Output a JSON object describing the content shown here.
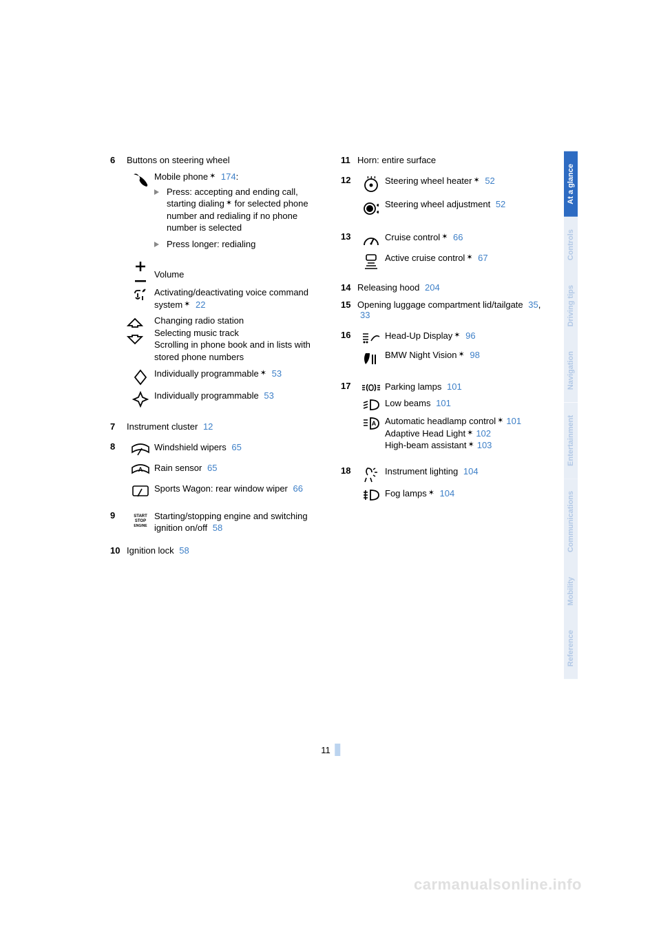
{
  "page_number": "11",
  "watermark": "carmanualsonline.info",
  "colors": {
    "page_ref": "#3d7fc7",
    "tab_active_bg": "#2d6bc2",
    "tab_active_fg": "#ffffff",
    "tab_inactive_bg": "#e8eef6",
    "tab_inactive_fg": "#b3c9e6"
  },
  "side_tabs": [
    {
      "label": "At a glance",
      "active": true
    },
    {
      "label": "Controls",
      "active": false
    },
    {
      "label": "Driving tips",
      "active": false
    },
    {
      "label": "Navigation",
      "active": false
    },
    {
      "label": "Entertainment",
      "active": false
    },
    {
      "label": "Communications",
      "active": false
    },
    {
      "label": "Mobility",
      "active": false
    },
    {
      "label": "Reference",
      "active": false
    }
  ],
  "left": {
    "i6": {
      "num": "6",
      "heading": "Buttons on steering wheel",
      "phone_label": "Mobile phone",
      "phone_ref": "174",
      "phone_colon": ":",
      "bullet1": "Press: accepting and ending call, starting dialing",
      "bullet1_after": " for selected phone number and redialing if no phone number is selected",
      "bullet2": "Press longer: redialing",
      "volume": "Volume",
      "voice_a": "Activating/deactivating voice command system",
      "voice_ref": "22",
      "radio_l1": "Changing radio station",
      "radio_l2": "Selecting music track",
      "radio_l3": "Scrolling in phone book and in lists with stored phone numbers",
      "prog1": "Individually programmable",
      "prog1_ref": "53",
      "prog2": "Individually programmable",
      "prog2_ref": "53"
    },
    "i7": {
      "num": "7",
      "text": "Instrument cluster",
      "ref": "12"
    },
    "i8": {
      "num": "8",
      "wipers": "Windshield wipers",
      "wipers_ref": "65",
      "rain": "Rain sensor",
      "rain_ref": "65",
      "rear": "Sports Wagon: rear window wiper",
      "rear_ref": "66"
    },
    "i9": {
      "num": "9",
      "text": "Starting/stopping engine and switching ignition on/off",
      "ref": "58"
    },
    "i10": {
      "num": "10",
      "text": "Ignition lock",
      "ref": "58"
    }
  },
  "right": {
    "i11": {
      "num": "11",
      "text": "Horn: entire surface"
    },
    "i12": {
      "num": "12",
      "heater": "Steering wheel heater",
      "heater_ref": "52",
      "adjust": "Steering wheel adjustment",
      "adjust_ref": "52"
    },
    "i13": {
      "num": "13",
      "cruise": "Cruise control",
      "cruise_ref": "66",
      "active": "Active cruise control",
      "active_ref": "67"
    },
    "i14": {
      "num": "14",
      "text": "Releasing hood",
      "ref": "204"
    },
    "i15": {
      "num": "15",
      "text_a": "Opening luggage compartment lid/tailgate",
      "ref_a": "35",
      "sep": ", ",
      "ref_b": "33"
    },
    "i16": {
      "num": "16",
      "hud": "Head-Up Display",
      "hud_ref": "96",
      "nv": "BMW Night Vision",
      "nv_ref": "98"
    },
    "i17": {
      "num": "17",
      "parking": "Parking lamps",
      "parking_ref": "101",
      "low": "Low beams",
      "low_ref": "101",
      "auto_a": "Automatic headlamp control",
      "auto_ref": "101",
      "adapt": "Adaptive Head Light",
      "adapt_ref": "102",
      "high": "High-beam assistant",
      "high_ref": "103"
    },
    "i18": {
      "num": "18",
      "instr": "Instrument lighting",
      "instr_ref": "104",
      "fog": "Fog lamps",
      "fog_ref": "104"
    }
  }
}
